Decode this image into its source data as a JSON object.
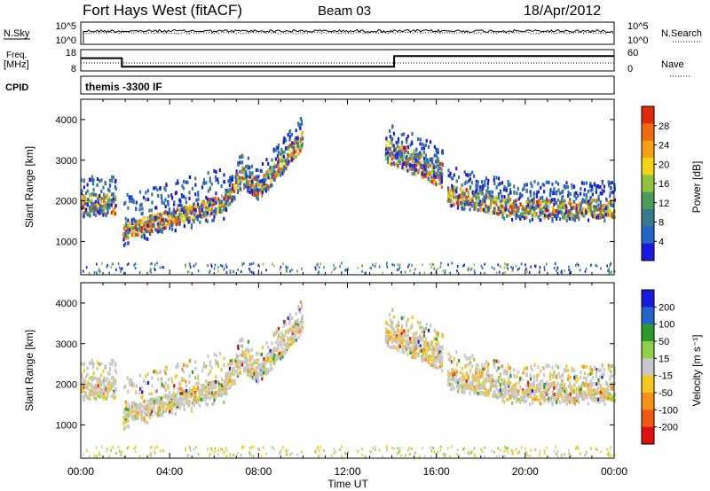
{
  "header": {
    "station": "Fort Hays West (fitACF)",
    "beam": "Beam 03",
    "date": "18/Apr/2012"
  },
  "top_panels": {
    "noise": {
      "left_label": "N.Sky",
      "right_label": "N.Search",
      "left_ticks": [
        "10^5",
        "10^0"
      ],
      "right_ticks": [
        "10^5",
        "10^0"
      ]
    },
    "freq": {
      "left_label_1": "Freq.",
      "left_label_2": "[MHz]",
      "right_label": "Nave",
      "left_ticks": [
        "18",
        "8"
      ],
      "right_ticks": [
        "60",
        "0"
      ],
      "freq_series_mhz": [
        {
          "t": 0.0,
          "v": 14
        },
        {
          "t": 1.85,
          "v": 14
        },
        {
          "t": 1.85,
          "v": 10
        },
        {
          "t": 14.1,
          "v": 10
        },
        {
          "t": 14.1,
          "v": 15
        },
        {
          "t": 24.0,
          "v": 15
        }
      ]
    },
    "cpid": {
      "label": "CPID",
      "text": "themis  -3300 IF"
    }
  },
  "chart_data": [
    {
      "type": "heatmap",
      "name": "power",
      "ylabel": "Slant Range [km]",
      "y_ticks": [
        "1000",
        "2000",
        "3000",
        "4000"
      ],
      "y_tick_values": [
        1000,
        2000,
        3000,
        4000
      ],
      "ylim": [
        180,
        4500
      ],
      "xlim": [
        0,
        24
      ],
      "colorbar": {
        "label": "Power [dB]",
        "ticks": [
          "4",
          "8",
          "12",
          "16",
          "20",
          "24",
          "28"
        ],
        "range": [
          0,
          30
        ]
      },
      "scatter_bands": [
        {
          "t0": 0.0,
          "t1": 1.6,
          "center": 1950,
          "width": 250,
          "spread": 700
        },
        {
          "t0": 1.9,
          "t1": 6.5,
          "center": 1350,
          "width": 200,
          "spread": 900
        },
        {
          "t0": 6.5,
          "t1": 10.0,
          "center": 2600,
          "width": 250,
          "spread": 600
        },
        {
          "t0": 13.7,
          "t1": 16.3,
          "center": 2900,
          "width": 300,
          "spread": 700
        },
        {
          "t0": 16.5,
          "t1": 24.0,
          "center": 1900,
          "width": 220,
          "spread": 700
        }
      ]
    },
    {
      "type": "heatmap",
      "name": "velocity",
      "ylabel": "Slant Range [km]",
      "xlabel": "Time UT",
      "x_ticks": [
        "00:00",
        "04:00",
        "08:00",
        "12:00",
        "16:00",
        "20:00",
        "00:00"
      ],
      "x_tick_values": [
        0,
        4,
        8,
        12,
        16,
        20,
        24
      ],
      "y_ticks": [
        "1000",
        "2000",
        "3000",
        "4000"
      ],
      "y_tick_values": [
        1000,
        2000,
        3000,
        4000
      ],
      "ylim": [
        180,
        4500
      ],
      "xlim": [
        0,
        24
      ],
      "colorbar": {
        "label": "Velocity [m s⁻¹]",
        "ticks": [
          "200",
          "100",
          "50",
          "15",
          "-15",
          "-50",
          "-100",
          "-200"
        ]
      }
    }
  ],
  "colors": {
    "power_scale": [
      "#1a1adc",
      "#2266cc",
      "#3a7a8c",
      "#4e9a5e",
      "#8fc43a",
      "#f5d21a",
      "#f5a014",
      "#f06a12",
      "#e02a0c"
    ],
    "velocity_scale": [
      "#1a1adc",
      "#2266cc",
      "#2a9a2a",
      "#8fd04a",
      "#c8c8c8",
      "#f5c820",
      "#f5901a",
      "#f05a14",
      "#e01010"
    ]
  }
}
